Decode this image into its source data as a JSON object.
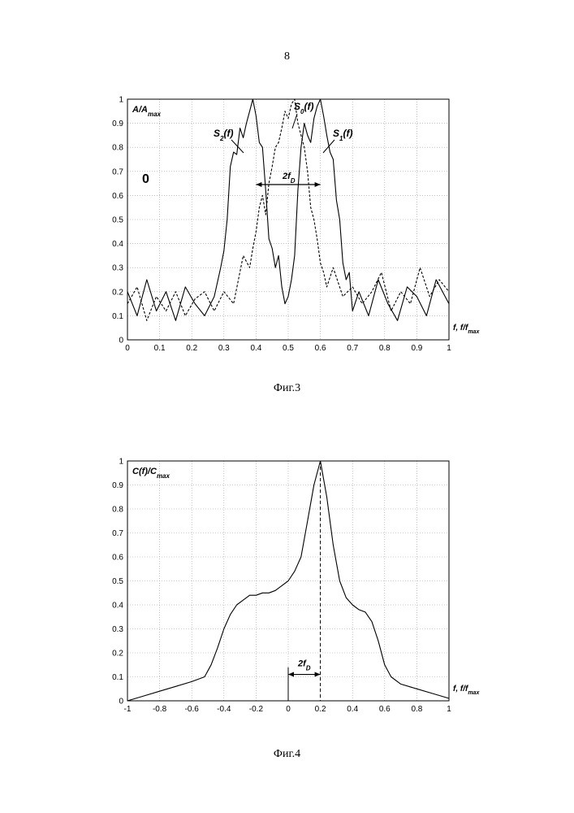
{
  "page_number": "8",
  "captions": {
    "fig3": "Фиг.3",
    "fig4": "Фиг.4"
  },
  "chart_data": [
    {
      "type": "line",
      "title": "",
      "ylabel_main": "A/A",
      "ylabel_sub": "max",
      "xlabel": "f, f/f",
      "xlabel_sub": "max",
      "panel_label": "0",
      "xlim": [
        0,
        1
      ],
      "ylim": [
        0,
        1
      ],
      "grid": true,
      "x_ticks": [
        "0",
        "0.1",
        "0.2",
        "0.3",
        "0.4",
        "0.5",
        "0.6",
        "0.7",
        "0.8",
        "0.9",
        "1"
      ],
      "y_ticks": [
        "0",
        "0.1",
        "0.2",
        "0.3",
        "0.4",
        "0.5",
        "0.6",
        "0.7",
        "0.8",
        "0.9",
        "1"
      ],
      "annotations": {
        "s2": {
          "main": "S",
          "sub": "2",
          "tail": "(f)"
        },
        "s0": {
          "main": "S",
          "sub": "0",
          "tail": "(f)"
        },
        "s1": {
          "main": "S",
          "sub": "1",
          "tail": "(f)"
        },
        "span": {
          "main": "2f",
          "sub": "D"
        }
      },
      "series": [
        {
          "style": "solid",
          "x": [
            0,
            0.03,
            0.06,
            0.09,
            0.12,
            0.15,
            0.18,
            0.21,
            0.24,
            0.27,
            0.29,
            0.3,
            0.31,
            0.32,
            0.33,
            0.34,
            0.35,
            0.36,
            0.37,
            0.38,
            0.39,
            0.4,
            0.41,
            0.42,
            0.43,
            0.44,
            0.45,
            0.46,
            0.47,
            0.48,
            0.49,
            0.5,
            0.51,
            0.52,
            0.53,
            0.54,
            0.55,
            0.56,
            0.57,
            0.58,
            0.59,
            0.6,
            0.61,
            0.62,
            0.63,
            0.64,
            0.65,
            0.66,
            0.67,
            0.68,
            0.69,
            0.7,
            0.72,
            0.75,
            0.78,
            0.81,
            0.84,
            0.87,
            0.9,
            0.93,
            0.96,
            1
          ],
          "y": [
            0.2,
            0.1,
            0.25,
            0.12,
            0.2,
            0.08,
            0.22,
            0.15,
            0.1,
            0.18,
            0.3,
            0.37,
            0.5,
            0.72,
            0.78,
            0.77,
            0.88,
            0.84,
            0.9,
            0.95,
            1.0,
            0.93,
            0.82,
            0.8,
            0.62,
            0.42,
            0.38,
            0.3,
            0.35,
            0.22,
            0.15,
            0.18,
            0.25,
            0.35,
            0.62,
            0.8,
            0.9,
            0.85,
            0.82,
            0.92,
            0.97,
            1.0,
            0.93,
            0.85,
            0.78,
            0.75,
            0.58,
            0.5,
            0.32,
            0.25,
            0.28,
            0.12,
            0.2,
            0.1,
            0.25,
            0.15,
            0.08,
            0.22,
            0.18,
            0.1,
            0.25,
            0.15
          ]
        },
        {
          "style": "dashed",
          "x": [
            0,
            0.03,
            0.06,
            0.09,
            0.12,
            0.15,
            0.18,
            0.21,
            0.24,
            0.27,
            0.3,
            0.33,
            0.36,
            0.38,
            0.39,
            0.4,
            0.41,
            0.42,
            0.43,
            0.44,
            0.45,
            0.46,
            0.47,
            0.48,
            0.49,
            0.5,
            0.51,
            0.52,
            0.53,
            0.54,
            0.55,
            0.56,
            0.57,
            0.58,
            0.59,
            0.6,
            0.61,
            0.62,
            0.64,
            0.67,
            0.7,
            0.73,
            0.76,
            0.79,
            0.82,
            0.85,
            0.88,
            0.91,
            0.94,
            0.97,
            1
          ],
          "y": [
            0.15,
            0.22,
            0.08,
            0.18,
            0.12,
            0.2,
            0.1,
            0.17,
            0.2,
            0.12,
            0.2,
            0.15,
            0.35,
            0.3,
            0.38,
            0.45,
            0.55,
            0.6,
            0.52,
            0.65,
            0.72,
            0.8,
            0.82,
            0.88,
            0.95,
            0.92,
            0.98,
            1.0,
            0.9,
            0.85,
            0.8,
            0.7,
            0.55,
            0.5,
            0.42,
            0.32,
            0.28,
            0.22,
            0.3,
            0.18,
            0.22,
            0.15,
            0.2,
            0.28,
            0.12,
            0.2,
            0.15,
            0.3,
            0.18,
            0.25,
            0.2
          ]
        }
      ]
    },
    {
      "type": "line",
      "title": "",
      "ylabel_main": "C(f)/C",
      "ylabel_sub": "max",
      "xlabel": "f, f/f",
      "xlabel_sub": "max",
      "xlim": [
        -1,
        1
      ],
      "ylim": [
        0,
        1
      ],
      "grid": true,
      "x_ticks": [
        "-1",
        "-0.8",
        "-0.6",
        "-0.4",
        "-0.2",
        "0",
        "0.2",
        "0.4",
        "0.6",
        "0.8",
        "1"
      ],
      "y_ticks": [
        "0",
        "0.1",
        "0.2",
        "0.3",
        "0.4",
        "0.5",
        "0.6",
        "0.7",
        "0.8",
        "0.9",
        "1"
      ],
      "annotations": {
        "span": {
          "main": "2f",
          "sub": "D"
        }
      },
      "markers": {
        "zero_x": 0,
        "peak_x": 0.2
      },
      "series": [
        {
          "style": "solid",
          "x": [
            -1,
            -0.9,
            -0.8,
            -0.7,
            -0.6,
            -0.52,
            -0.48,
            -0.44,
            -0.4,
            -0.36,
            -0.32,
            -0.28,
            -0.24,
            -0.2,
            -0.16,
            -0.12,
            -0.08,
            -0.04,
            0,
            0.04,
            0.08,
            0.12,
            0.16,
            0.2,
            0.24,
            0.28,
            0.32,
            0.36,
            0.4,
            0.44,
            0.48,
            0.52,
            0.56,
            0.6,
            0.64,
            0.7,
            0.8,
            0.9,
            1
          ],
          "y": [
            0,
            0.02,
            0.04,
            0.06,
            0.08,
            0.1,
            0.15,
            0.22,
            0.3,
            0.36,
            0.4,
            0.42,
            0.44,
            0.44,
            0.45,
            0.45,
            0.46,
            0.48,
            0.5,
            0.54,
            0.6,
            0.75,
            0.9,
            1.0,
            0.85,
            0.65,
            0.5,
            0.43,
            0.4,
            0.38,
            0.37,
            0.33,
            0.25,
            0.15,
            0.1,
            0.07,
            0.05,
            0.03,
            0.01
          ]
        }
      ]
    }
  ]
}
